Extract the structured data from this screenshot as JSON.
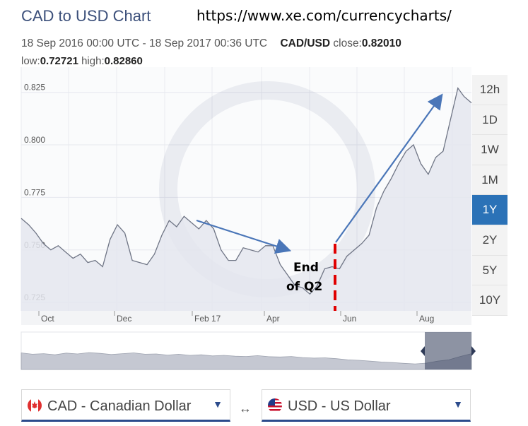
{
  "header": {
    "title": "CAD to USD Chart",
    "url": "https://www.xe.com/currencycharts/",
    "date_range": "18 Sep 2016 00:00 UTC - 18 Sep 2017 00:36 UTC",
    "pair": "CAD/USD",
    "close_label": "close:",
    "close_value": "0.82010",
    "low_label": "low:",
    "low_value": "0.72721",
    "high_label": "high:",
    "high_value": "0.82860"
  },
  "ranges": [
    "12h",
    "1D",
    "1W",
    "1M",
    "1Y",
    "2Y",
    "5Y",
    "10Y"
  ],
  "active_range": "1Y",
  "annotation": {
    "line1": "End",
    "line2": "of Q2"
  },
  "selectors": {
    "from": "CAD - Canadian Dollar",
    "to": "USD - US Dollar",
    "swap": "↔"
  },
  "colors": {
    "line": "#6f7585",
    "area": "#e4e6ee",
    "arrow": "#4a76b8",
    "marker": "#e00000",
    "active": "#2b72b7"
  },
  "chart_data": {
    "type": "area",
    "title": "CAD to USD Chart",
    "x_tick_labels": [
      "Oct",
      "Dec",
      "Feb 17",
      "Apr",
      "Jun",
      "Aug"
    ],
    "y_tick_labels": [
      "0.725",
      "0.750",
      "0.775",
      "0.800",
      "0.825"
    ],
    "ylim": [
      0.721,
      0.837
    ],
    "xlim": [
      "2016-09-18",
      "2017-09-18"
    ],
    "grid": true,
    "series": [
      {
        "x": [
          "2016-09-18",
          "2016-09-24",
          "2016-09-30",
          "2016-10-06",
          "2016-10-12",
          "2016-10-18",
          "2016-10-24",
          "2016-10-30",
          "2016-11-05",
          "2016-11-11",
          "2016-11-17",
          "2016-11-23",
          "2016-11-29",
          "2016-12-05",
          "2016-12-11",
          "2016-12-17",
          "2016-12-23",
          "2016-12-29",
          "2017-01-04",
          "2017-01-10",
          "2017-01-16",
          "2017-01-22",
          "2017-01-28",
          "2017-02-03",
          "2017-02-09",
          "2017-02-15",
          "2017-02-21",
          "2017-02-27",
          "2017-03-05",
          "2017-03-11",
          "2017-03-17",
          "2017-03-23",
          "2017-03-29",
          "2017-04-04",
          "2017-04-10",
          "2017-04-16",
          "2017-04-22",
          "2017-04-28",
          "2017-05-04",
          "2017-05-10",
          "2017-05-16",
          "2017-05-22",
          "2017-05-28",
          "2017-06-03",
          "2017-06-09",
          "2017-06-15",
          "2017-06-21",
          "2017-06-27",
          "2017-07-03",
          "2017-07-09",
          "2017-07-15",
          "2017-07-21",
          "2017-07-27",
          "2017-08-02",
          "2017-08-08",
          "2017-08-14",
          "2017-08-20",
          "2017-08-26",
          "2017-09-01",
          "2017-09-07",
          "2017-09-12",
          "2017-09-18"
        ],
        "y": [
          0.765,
          0.762,
          0.758,
          0.753,
          0.75,
          0.752,
          0.749,
          0.746,
          0.748,
          0.744,
          0.745,
          0.742,
          0.755,
          0.762,
          0.758,
          0.745,
          0.744,
          0.743,
          0.748,
          0.757,
          0.764,
          0.761,
          0.766,
          0.763,
          0.76,
          0.764,
          0.76,
          0.75,
          0.745,
          0.745,
          0.751,
          0.75,
          0.749,
          0.752,
          0.752,
          0.743,
          0.738,
          0.733,
          0.732,
          0.729,
          0.733,
          0.741,
          0.742,
          0.741,
          0.747,
          0.75,
          0.753,
          0.757,
          0.77,
          0.778,
          0.784,
          0.791,
          0.797,
          0.8,
          0.791,
          0.786,
          0.794,
          0.797,
          0.812,
          0.827,
          0.823,
          0.82
        ]
      }
    ]
  }
}
